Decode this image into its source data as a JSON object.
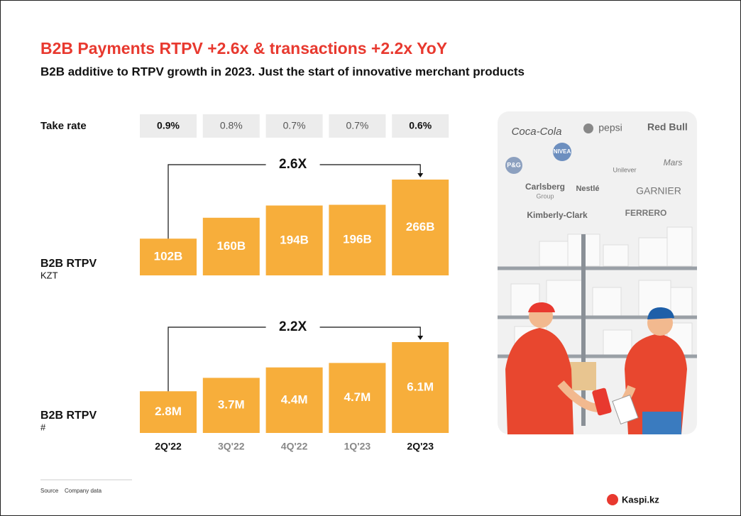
{
  "header": {
    "title": "B2B Payments RTPV +2.6x & transactions +2.2x YoY",
    "subtitle": "B2B additive to RTPV growth in 2023. Just the start of innovative merchant products"
  },
  "take_rate": {
    "label": "Take rate",
    "cells": [
      "0.9%",
      "0.8%",
      "0.7%",
      "0.7%",
      "0.6%"
    ]
  },
  "chart_data": [
    {
      "type": "bar",
      "label": "B2B RTPV",
      "unit": "KZT",
      "growth": "2.6X",
      "color": "#f7ae3b",
      "values": [
        102,
        160,
        194,
        196,
        266
      ],
      "value_labels": [
        "102B",
        "160B",
        "194B",
        "196B",
        "266B"
      ]
    },
    {
      "type": "bar",
      "label": "B2B RTPV",
      "unit": "#",
      "growth": "2.2X",
      "color": "#f7ae3b",
      "categories": [
        "2Q'22",
        "3Q'22",
        "4Q'22",
        "1Q'23",
        "2Q'23"
      ],
      "values": [
        2.8,
        3.7,
        4.4,
        4.7,
        6.1
      ],
      "value_labels": [
        "2.8M",
        "3.7M",
        "4.4M",
        "4.7M",
        "6.1M"
      ]
    }
  ],
  "brands": [
    "Coca-Cola",
    "pepsi",
    "Red Bull",
    "NIVEA",
    "P&G",
    "Unilever",
    "Mars",
    "Carlsberg",
    "Group",
    "Nestlé",
    "GARNIER",
    "Kimberly-Clark",
    "FERRERO"
  ],
  "footer": {
    "source_label": "Source",
    "source": "Company data",
    "brand": "Kaspi.kz"
  }
}
